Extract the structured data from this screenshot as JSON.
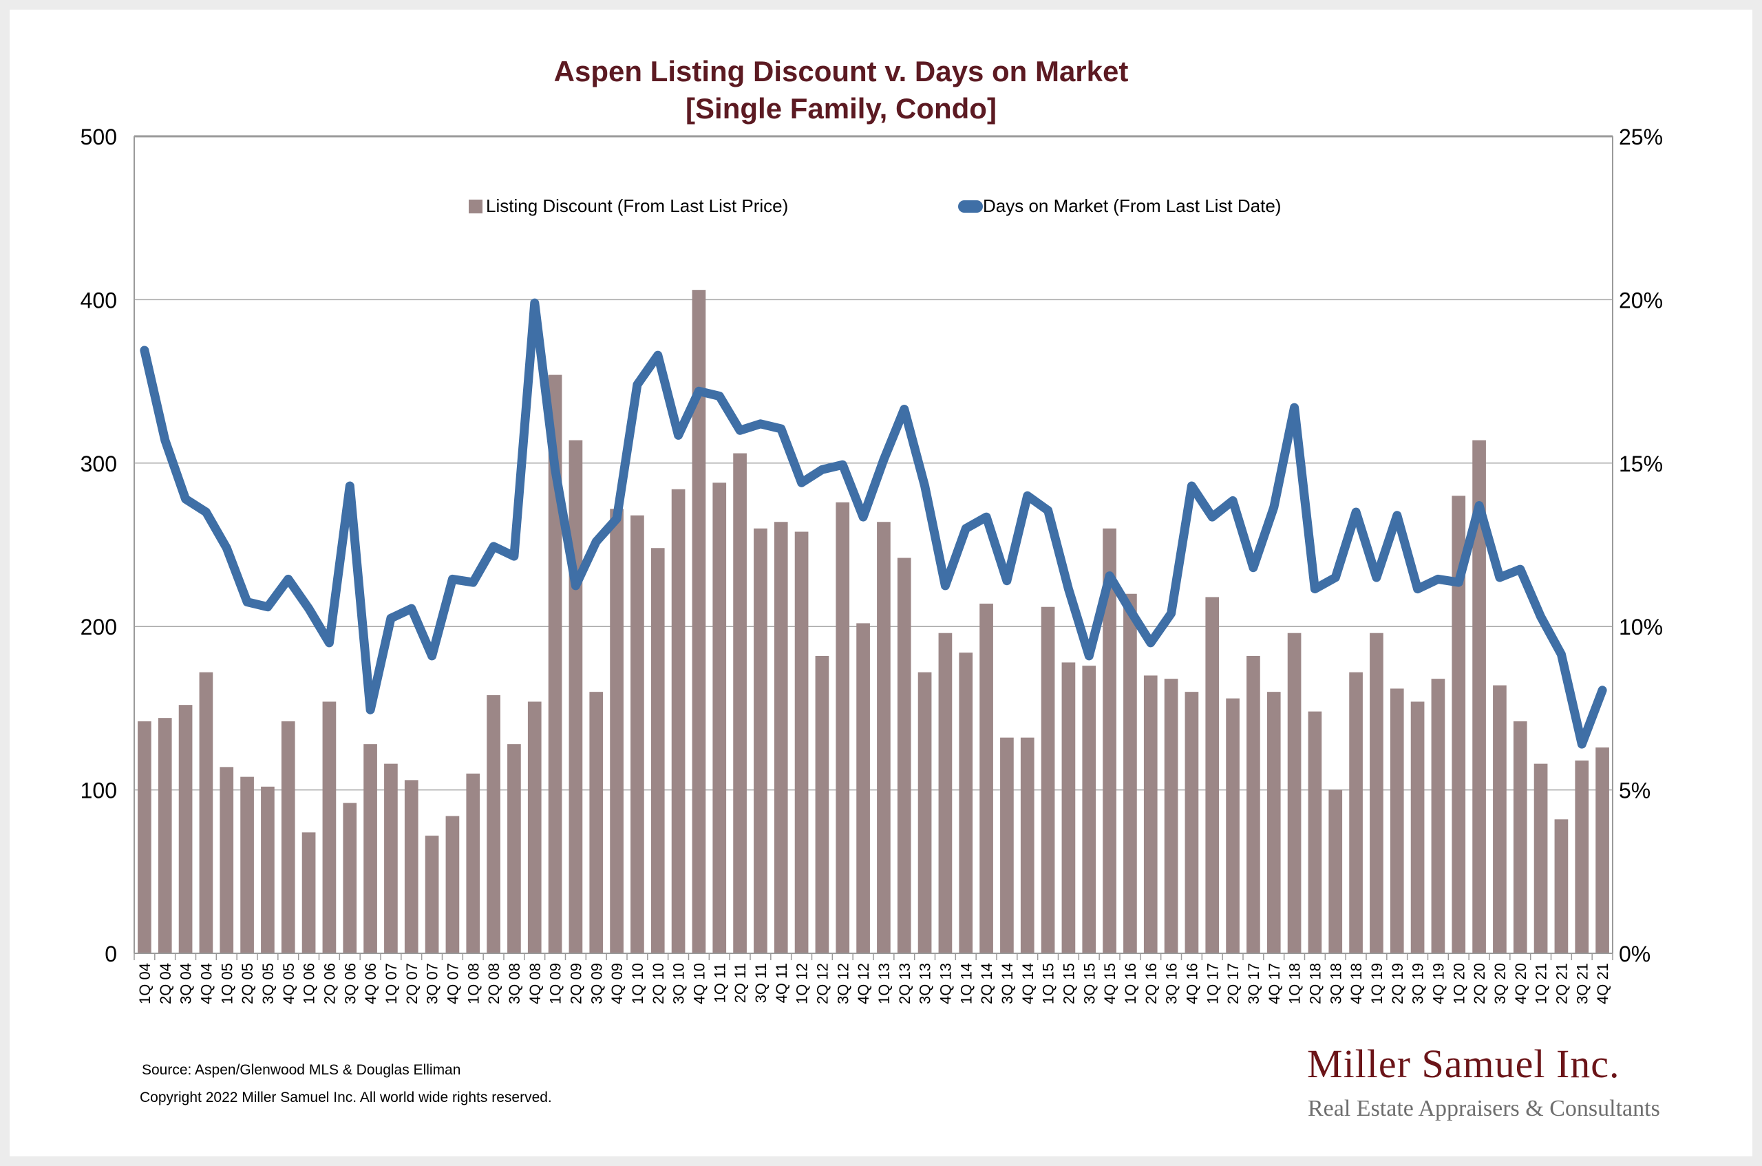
{
  "chart_data": {
    "type": "bar+line",
    "title": "Aspen Listing Discount v. Days on Market",
    "subtitle": "[Single Family, Condo]",
    "left_axis": {
      "label": "",
      "ticks": [
        "0",
        "100",
        "200",
        "300",
        "400",
        "500"
      ],
      "range": [
        0,
        500
      ]
    },
    "right_axis": {
      "label": "",
      "ticks": [
        "0%",
        "5%",
        "10%",
        "15%",
        "20%",
        "25%"
      ],
      "range": [
        0,
        25
      ]
    },
    "grid": true,
    "legend_position": "top-center",
    "categories": [
      "1Q 04",
      "2Q 04",
      "3Q 04",
      "4Q 04",
      "1Q 05",
      "2Q 05",
      "3Q 05",
      "4Q 05",
      "1Q 06",
      "2Q 06",
      "3Q 06",
      "4Q 06",
      "1Q 07",
      "2Q 07",
      "3Q 07",
      "4Q 07",
      "1Q 08",
      "2Q 08",
      "3Q 08",
      "4Q 08",
      "1Q 09",
      "2Q 09",
      "3Q 09",
      "4Q 09",
      "1Q 10",
      "2Q 10",
      "3Q 10",
      "4Q 10",
      "1Q 11",
      "2Q 11",
      "3Q 11",
      "4Q 11",
      "1Q 12",
      "2Q 12",
      "3Q 12",
      "4Q 12",
      "1Q 13",
      "2Q 13",
      "3Q 13",
      "4Q 13",
      "1Q 14",
      "2Q 14",
      "3Q 14",
      "4Q 14",
      "1Q 15",
      "2Q 15",
      "3Q 15",
      "4Q 15",
      "1Q 16",
      "2Q 16",
      "3Q 16",
      "4Q 16",
      "1Q 17",
      "2Q 17",
      "3Q 17",
      "4Q 17",
      "1Q 18",
      "2Q 18",
      "3Q 18",
      "4Q 18",
      "1Q 19",
      "2Q 19",
      "3Q 19",
      "4Q 19",
      "1Q 20",
      "2Q 20",
      "3Q 20",
      "4Q 20",
      "1Q 21",
      "2Q 21",
      "3Q 21",
      "4Q 21"
    ],
    "series": [
      {
        "name": "Listing Discount (From Last List Price)",
        "type": "bar",
        "axis": "right",
        "unit": "%",
        "color": "#9c8787",
        "values": [
          7.1,
          7.2,
          7.6,
          8.6,
          5.7,
          5.4,
          5.1,
          7.1,
          3.7,
          7.7,
          4.6,
          6.4,
          5.8,
          5.3,
          3.6,
          4.2,
          5.5,
          7.9,
          6.4,
          7.7,
          17.7,
          15.7,
          8.0,
          13.6,
          13.4,
          12.4,
          14.2,
          20.3,
          14.4,
          15.3,
          13.0,
          13.2,
          12.9,
          9.1,
          13.8,
          10.1,
          13.2,
          12.1,
          8.6,
          9.8,
          9.2,
          10.7,
          6.6,
          6.6,
          10.6,
          8.9,
          8.8,
          13.0,
          11.0,
          8.5,
          8.4,
          8.0,
          10.9,
          7.8,
          9.1,
          8.0,
          9.8,
          7.4,
          5.0,
          8.6,
          9.8,
          8.1,
          7.7,
          8.4,
          14.0,
          15.7,
          8.2,
          7.1,
          5.8,
          4.1,
          5.9,
          6.3
        ]
      },
      {
        "name": "Days on Market (From Last List Date)",
        "type": "line",
        "axis": "left",
        "unit": "days",
        "color": "#3f6fa6",
        "values": [
          369,
          314,
          278,
          270,
          248,
          215,
          212,
          229,
          211,
          190,
          286,
          149,
          205,
          211,
          182,
          229,
          227,
          249,
          243,
          398,
          296,
          225,
          252,
          266,
          348,
          366,
          317,
          344,
          341,
          320,
          324,
          321,
          288,
          296,
          299,
          267,
          302,
          333,
          286,
          225,
          260,
          267,
          228,
          280,
          271,
          223,
          182,
          231,
          210,
          190,
          208,
          286,
          267,
          277,
          236,
          273,
          334,
          223,
          230,
          270,
          230,
          268,
          223,
          229,
          227,
          274,
          230,
          235,
          206,
          183,
          128,
          161
        ]
      }
    ]
  },
  "footer": {
    "source": "Source:  Aspen/Glenwood MLS & Douglas Elliman",
    "copyright": "Copyright 2022 Miller Samuel Inc.  All world wide rights reserved."
  },
  "logo": {
    "name": "Miller Samuel Inc.",
    "tagline": "Real Estate Appraisers & Consultants"
  }
}
